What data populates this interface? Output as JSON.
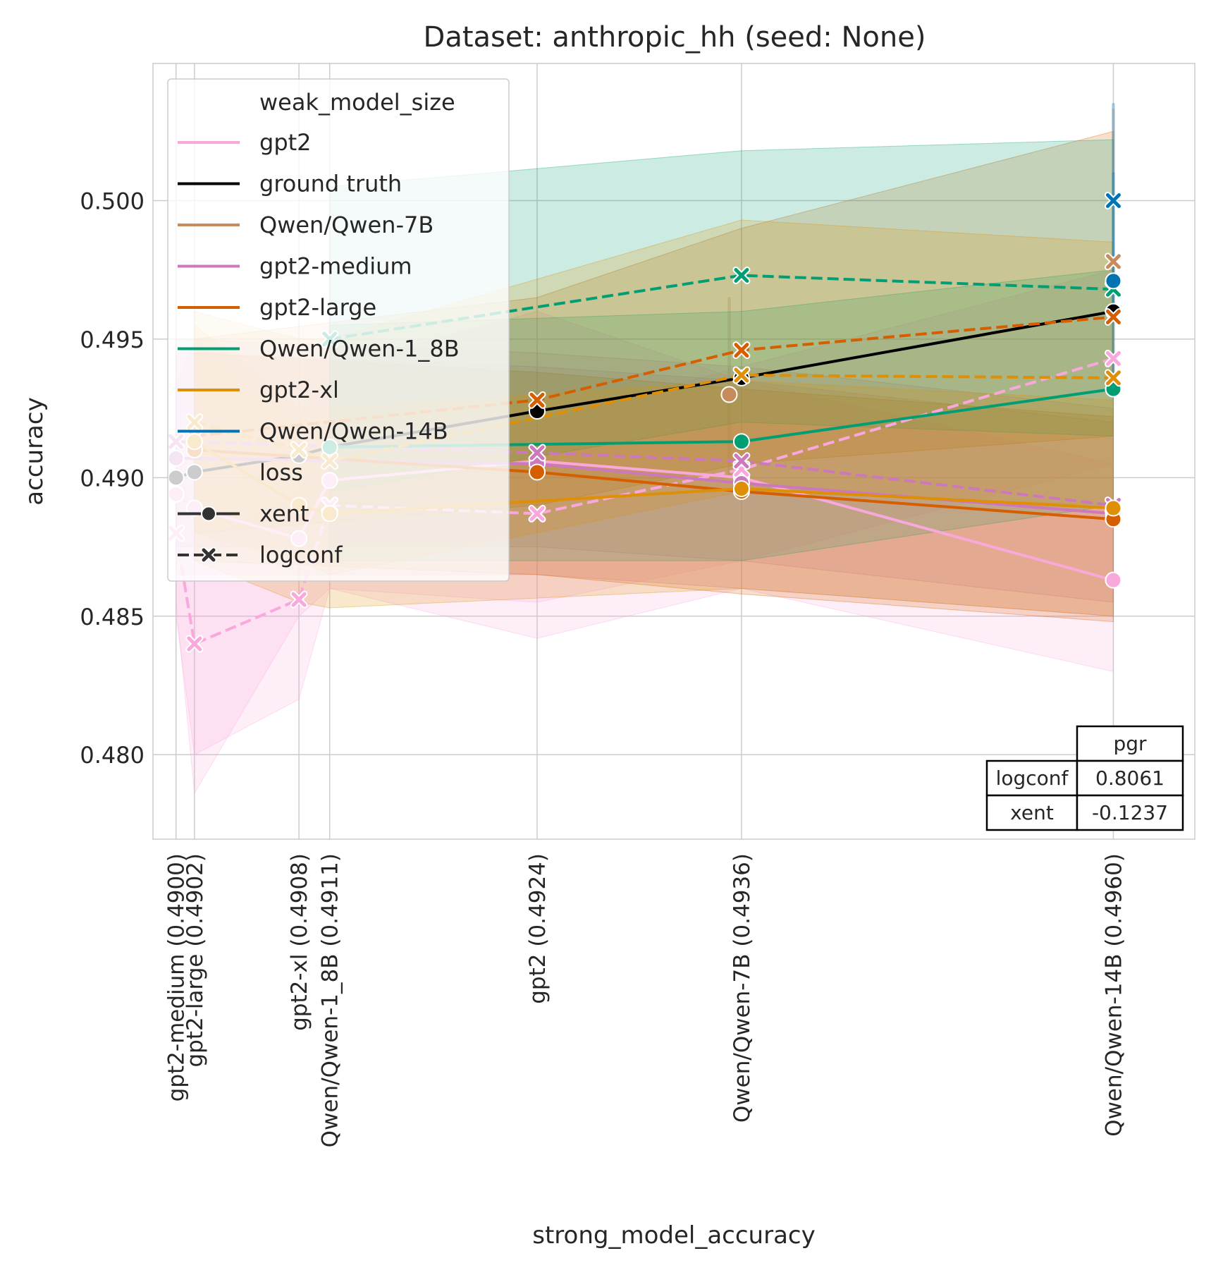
{
  "chart_data": {
    "type": "line",
    "title": "Dataset: anthropic_hh (seed: None)",
    "xlabel": "strong_model_accuracy",
    "ylabel": "accuracy",
    "xlim": [
      0.48985,
      0.49663
    ],
    "ylim": [
      0.47695,
      0.50495
    ],
    "yticks": [
      0.48,
      0.485,
      0.49,
      0.495,
      0.5
    ],
    "ytick_labels": [
      "0.480",
      "0.485",
      "0.490",
      "0.495",
      "0.500"
    ],
    "xticks": [
      0.49,
      0.49012,
      0.4908,
      0.491,
      0.49235,
      0.49368,
      0.4961
    ],
    "xtick_labels": [
      "gpt2-medium (0.4900)",
      "gpt2-large (0.4902)",
      "gpt2-xl (0.4908)",
      "Qwen/Qwen-1_8B (0.4911)",
      "gpt2 (0.4924)",
      "Qwen/Qwen-7B (0.4936)",
      "Qwen/Qwen-14B (0.4960)"
    ],
    "grid": true,
    "legend": {
      "title": "weak_model_size",
      "hue_entries": [
        {
          "label": "gpt2",
          "color": "#f9a8dc"
        },
        {
          "label": "ground truth",
          "color": "#000000"
        },
        {
          "label": "Qwen/Qwen-7B",
          "color": "#c88b5e"
        },
        {
          "label": "gpt2-medium",
          "color": "#cc78bc"
        },
        {
          "label": "gpt2-large",
          "color": "#d55e00"
        },
        {
          "label": "Qwen/Qwen-1_8B",
          "color": "#029e73"
        },
        {
          "label": "gpt2-xl",
          "color": "#de8f05"
        },
        {
          "label": "Qwen/Qwen-14B",
          "color": "#0173b2"
        }
      ],
      "style_title": "loss",
      "style_entries": [
        {
          "label": "xent",
          "dash": "solid",
          "marker": "circle"
        },
        {
          "label": "logconf",
          "dash": "dashed",
          "marker": "x"
        }
      ],
      "placement": "upper-left"
    },
    "series": [
      {
        "name": "gpt2",
        "loss": "xent",
        "color": "#f9a8dc",
        "x": [
          0.49,
          0.49012,
          0.4908,
          0.491,
          0.49235,
          0.49368,
          0.4961
        ],
        "y": [
          0.4894,
          0.4889,
          0.4878,
          0.4899,
          0.4906,
          0.49,
          0.4863
        ],
        "ci_low": [
          0.4855,
          0.4786,
          0.485,
          0.486,
          0.4842,
          0.486,
          0.483
        ],
        "ci_high": [
          0.4933,
          0.495,
          0.492,
          0.494,
          0.496,
          0.4935,
          0.4905
        ]
      },
      {
        "name": "gpt2",
        "loss": "logconf",
        "color": "#f9a8dc",
        "x": [
          0.49,
          0.49012,
          0.4908,
          0.491,
          0.49235,
          0.49368,
          0.4961
        ],
        "y": [
          0.488,
          0.484,
          0.4856,
          0.489,
          0.4887,
          0.4903,
          0.4943
        ],
        "ci_low": [
          0.485,
          0.48,
          0.482,
          0.486,
          0.4855,
          0.487,
          0.4905
        ],
        "ci_high": [
          0.4915,
          0.4875,
          0.4895,
          0.492,
          0.492,
          0.494,
          0.4975
        ]
      },
      {
        "name": "ground truth",
        "loss": "xent",
        "color": "#000000",
        "x": [
          0.49,
          0.49012,
          0.4908,
          0.491,
          0.49235,
          0.49368,
          0.4961
        ],
        "y": [
          0.49,
          0.4902,
          0.4908,
          0.4911,
          0.4924,
          0.4936,
          0.496
        ],
        "ci_low": null,
        "ci_high": null
      },
      {
        "name": "Qwen/Qwen-7B",
        "loss": "xent",
        "color": "#c88b5e",
        "x": [
          0.4936
        ],
        "y": [
          0.493
        ],
        "ci_low": [
          0.49
        ],
        "ci_high": [
          0.4965
        ]
      },
      {
        "name": "Qwen/Qwen-7B",
        "loss": "logconf",
        "color": "#c88b5e",
        "x": [
          0.4961
        ],
        "y": [
          0.4978
        ],
        "ci_low": [
          0.4935
        ],
        "ci_high": [
          0.5033
        ]
      },
      {
        "name": "gpt2-medium",
        "loss": "xent",
        "color": "#cc78bc",
        "x": [
          0.49,
          0.49235,
          0.49368,
          0.4961
        ],
        "y": [
          0.4907,
          0.4905,
          0.4898,
          0.4887
        ],
        "ci_low": [
          0.4865,
          0.4865,
          0.486,
          0.485
        ],
        "ci_high": [
          0.4945,
          0.494,
          0.4935,
          0.492
        ]
      },
      {
        "name": "gpt2-medium",
        "loss": "logconf",
        "color": "#cc78bc",
        "x": [
          0.49,
          0.49235,
          0.49368,
          0.4961
        ],
        "y": [
          0.4913,
          0.4909,
          0.4906,
          0.489
        ],
        "ci_low": [
          0.4875,
          0.4875,
          0.487,
          0.4855
        ],
        "ci_high": [
          0.495,
          0.4945,
          0.494,
          0.4925
        ]
      },
      {
        "name": "gpt2-large",
        "loss": "xent",
        "color": "#d55e00",
        "x": [
          0.49012,
          0.49235,
          0.49368,
          0.4961
        ],
        "y": [
          0.491,
          0.4902,
          0.4895,
          0.4885
        ],
        "ci_low": [
          0.487,
          0.4865,
          0.4858,
          0.4848
        ],
        "ci_high": [
          0.4945,
          0.4938,
          0.4932,
          0.4922
        ]
      },
      {
        "name": "gpt2-large",
        "loss": "logconf",
        "color": "#d55e00",
        "x": [
          0.49012,
          0.49235,
          0.49368,
          0.4961
        ],
        "y": [
          0.4915,
          0.4928,
          0.4946,
          0.4958
        ],
        "ci_low": [
          0.488,
          0.489,
          0.4905,
          0.4915
        ],
        "ci_high": [
          0.495,
          0.4965,
          0.499,
          0.5025
        ]
      },
      {
        "name": "Qwen/Qwen-1_8B",
        "loss": "xent",
        "color": "#029e73",
        "x": [
          0.491,
          0.49368,
          0.4961
        ],
        "y": [
          0.4911,
          0.4913,
          0.4932
        ],
        "ci_low": [
          0.487,
          0.487,
          0.489
        ],
        "ci_high": [
          0.4955,
          0.496,
          0.4975
        ]
      },
      {
        "name": "Qwen/Qwen-1_8B",
        "loss": "logconf",
        "color": "#029e73",
        "x": [
          0.491,
          0.49368,
          0.4961
        ],
        "y": [
          0.495,
          0.4973,
          0.4968
        ],
        "ci_low": [
          0.4895,
          0.492,
          0.4915
        ],
        "ci_high": [
          0.5005,
          0.5018,
          0.5022
        ]
      },
      {
        "name": "gpt2-xl",
        "loss": "xent",
        "color": "#de8f05",
        "x": [
          0.49012,
          0.4908,
          0.491,
          0.49368,
          0.4961
        ],
        "y": [
          0.4913,
          0.489,
          0.4887,
          0.4896,
          0.4889
        ],
        "ci_low": [
          0.487,
          0.4855,
          0.4853,
          0.486,
          0.485
        ],
        "ci_high": [
          0.4955,
          0.4925,
          0.4925,
          0.4935,
          0.4928
        ]
      },
      {
        "name": "gpt2-xl",
        "loss": "logconf",
        "color": "#de8f05",
        "x": [
          0.49012,
          0.4908,
          0.491,
          0.49368,
          0.4961
        ],
        "y": [
          0.492,
          0.491,
          0.4906,
          0.4937,
          0.4936
        ],
        "ci_low": [
          0.488,
          0.487,
          0.4865,
          0.4895,
          0.489
        ],
        "ci_high": [
          0.496,
          0.495,
          0.495,
          0.4993,
          0.4985
        ]
      },
      {
        "name": "Qwen/Qwen-14B",
        "loss": "xent",
        "color": "#0173b2",
        "x": [
          0.4961
        ],
        "y": [
          0.4971
        ],
        "ci_low": [
          0.4935
        ],
        "ci_high": [
          0.501
        ]
      },
      {
        "name": "Qwen/Qwen-14B",
        "loss": "logconf",
        "color": "#0173b2",
        "x": [
          0.4961
        ],
        "y": [
          0.5
        ],
        "ci_low": [
          0.496
        ],
        "ci_high": [
          0.5035
        ]
      }
    ],
    "pgr_table": {
      "header": "pgr",
      "rows": [
        {
          "label": "logconf",
          "value": "0.8061"
        },
        {
          "label": "xent",
          "value": "-0.1237"
        }
      ]
    }
  }
}
